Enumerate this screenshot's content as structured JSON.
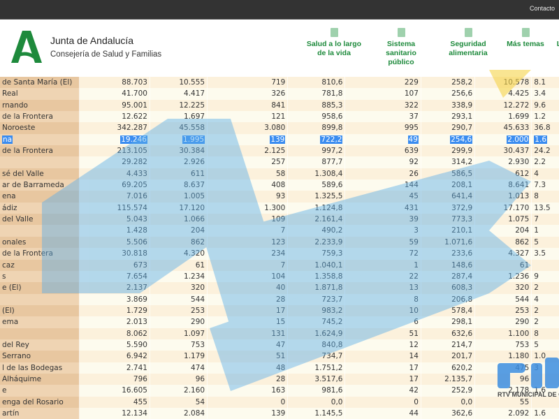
{
  "topbar": {
    "contact": "Contacto"
  },
  "header": {
    "brand_title": "Junta de Andalucía",
    "brand_subtitle": "Consejería de Salud y Familias",
    "logo_color": "#1e8a3c"
  },
  "nav": [
    {
      "label": "Salud a lo largo de la vida",
      "icon": "book-plus-icon"
    },
    {
      "label": "Sistema sanitario público",
      "icon": "hospital-icon"
    },
    {
      "label": "Seguridad alimentaria",
      "icon": "glasses-icon"
    },
    {
      "label": "Más temas",
      "icon": "grid-icon"
    },
    {
      "label": "L",
      "icon": ""
    }
  ],
  "selected_row": 5,
  "colors": {
    "name_col": "#e8c7a0",
    "row_odd": "#fcf1dc",
    "row_even": "#fdfbee",
    "selection": "#3a8cf0",
    "nav_green": "#1e8a3c"
  },
  "watermark": {
    "text": "RTV MUNICIPAL DE CH"
  },
  "rows": [
    [
      "de Santa María (El)",
      "88.703",
      "10.555",
      "719",
      "810,6",
      "229",
      "258,2",
      "10.578",
      "8.1"
    ],
    [
      "Real",
      "41.700",
      "4.417",
      "326",
      "781,8",
      "107",
      "256,6",
      "4.425",
      "3.4"
    ],
    [
      "rnando",
      "95.001",
      "12.225",
      "841",
      "885,3",
      "322",
      "338,9",
      "12.272",
      "9.6"
    ],
    [
      "de la Frontera",
      "12.622",
      "1.697",
      "121",
      "958,6",
      "37",
      "293,1",
      "1.699",
      "1.2"
    ],
    [
      "Noroeste",
      "342.287",
      "45.558",
      "3.080",
      "899,8",
      "995",
      "290,7",
      "45.633",
      "36.8"
    ],
    [
      "na",
      "19.246",
      "1.995",
      "139",
      "722,2",
      "49",
      "254,6",
      "2.000",
      "1.6"
    ],
    [
      "de la Frontera",
      "213.105",
      "30.384",
      "2.125",
      "997,2",
      "639",
      "299,9",
      "30.437",
      "24.2"
    ],
    [
      "",
      "29.282",
      "2.926",
      "257",
      "877,7",
      "92",
      "314,2",
      "2.930",
      "2.2"
    ],
    [
      "sé del Valle",
      "4.433",
      "611",
      "58",
      "1.308,4",
      "26",
      "586,5",
      "612",
      "4"
    ],
    [
      "ar de Barrameda",
      "69.205",
      "8.637",
      "408",
      "589,6",
      "144",
      "208,1",
      "8.641",
      "7.3"
    ],
    [
      "ena",
      "7.016",
      "1.005",
      "93",
      "1.325,5",
      "45",
      "641,4",
      "1.013",
      "8"
    ],
    [
      "ádiz",
      "115.574",
      "17.120",
      "1.300",
      "1.124,8",
      "431",
      "372,9",
      "17.170",
      "13.5"
    ],
    [
      "del Valle",
      "5.043",
      "1.066",
      "109",
      "2.161,4",
      "39",
      "773,3",
      "1.075",
      "7"
    ],
    [
      "",
      "1.428",
      "204",
      "7",
      "490,2",
      "3",
      "210,1",
      "204",
      "1"
    ],
    [
      "onales",
      "5.506",
      "862",
      "123",
      "2.233,9",
      "59",
      "1.071,6",
      "862",
      "5"
    ],
    [
      "de la Frontera",
      "30.818",
      "4.320",
      "234",
      "759,3",
      "72",
      "233,6",
      "4.327",
      "3.5"
    ],
    [
      "caz",
      "673",
      "61",
      "7",
      "1.040,1",
      "1",
      "148,6",
      "61",
      ""
    ],
    [
      "s",
      "7.654",
      "1.234",
      "104",
      "1.358,8",
      "22",
      "287,4",
      "1.236",
      "9"
    ],
    [
      "e (El)",
      "2.137",
      "320",
      "40",
      "1.871,8",
      "13",
      "608,3",
      "320",
      "2"
    ],
    [
      "",
      "3.869",
      "544",
      "28",
      "723,7",
      "8",
      "206,8",
      "544",
      "4"
    ],
    [
      "(El)",
      "1.729",
      "253",
      "17",
      "983,2",
      "10",
      "578,4",
      "253",
      "2"
    ],
    [
      "ema",
      "2.013",
      "290",
      "15",
      "745,2",
      "6",
      "298,1",
      "290",
      "2"
    ],
    [
      "",
      "8.062",
      "1.097",
      "131",
      "1.624,9",
      "51",
      "632,6",
      "1.100",
      "8"
    ],
    [
      "del Rey",
      "5.590",
      "753",
      "47",
      "840,8",
      "12",
      "214,7",
      "753",
      "5"
    ],
    [
      "Serrano",
      "6.942",
      "1.179",
      "51",
      "734,7",
      "14",
      "201,7",
      "1.180",
      "1.0"
    ],
    [
      "l de las Bodegas",
      "2.741",
      "474",
      "48",
      "1.751,2",
      "17",
      "620,2",
      "475",
      "3"
    ],
    [
      "Alháquime",
      "796",
      "96",
      "28",
      "3.517,6",
      "17",
      "2.135,7",
      "96",
      ""
    ],
    [
      "e",
      "16.605",
      "2.160",
      "163",
      "981,6",
      "42",
      "252,9",
      "2.178",
      "1.6"
    ],
    [
      "enga del Rosario",
      "455",
      "54",
      "0",
      "0,0",
      "0",
      "0,0",
      "55",
      ""
    ],
    [
      "artín",
      "12.134",
      "2.084",
      "139",
      "1.145,5",
      "44",
      "362,6",
      "2.092",
      "1.6"
    ]
  ]
}
